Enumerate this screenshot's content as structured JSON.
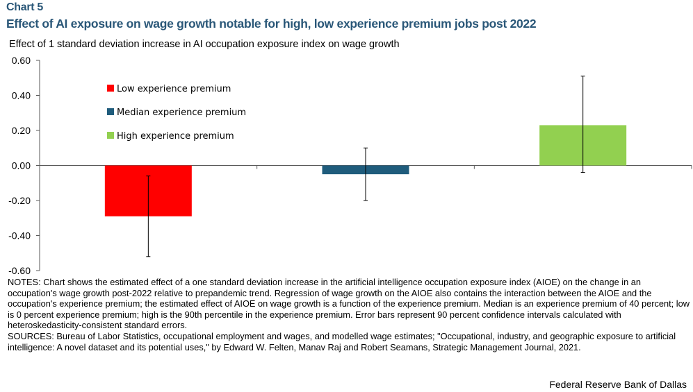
{
  "chart_number": "Chart 5",
  "title": "Effect of AI exposure on wage growth notable for high, low experience premium jobs post 2022",
  "subtitle": "Effect of 1 standard deviation increase in AI occupation exposure index on wage growth",
  "chart_data": {
    "type": "bar",
    "title": "Effect of AI exposure on wage growth notable for high, low experience premium jobs post 2022",
    "ylabel": "Effect of 1 standard deviation increase in AI occupation exposure index on wage growth",
    "xlabel": "",
    "ylim": [
      -0.6,
      0.6
    ],
    "yticks": [
      0.6,
      0.4,
      0.2,
      0.0,
      -0.2,
      -0.4,
      -0.6
    ],
    "ytick_labels": [
      "0.60",
      "0.40",
      "0.20",
      "0.00",
      "-0.20",
      "-0.40",
      "-0.60"
    ],
    "legend_position": "top-left",
    "series": [
      {
        "name": "Low experience premium",
        "value": -0.29,
        "ci_low": -0.52,
        "ci_high": -0.06,
        "color": "#ff0000"
      },
      {
        "name": "Median experience premium",
        "value": -0.05,
        "ci_low": -0.2,
        "ci_high": 0.1,
        "color": "#1f5c7c"
      },
      {
        "name": "High experience premium",
        "value": 0.23,
        "ci_low": -0.04,
        "ci_high": 0.51,
        "color": "#92d050"
      }
    ]
  },
  "notes": [
    "NOTES: Chart shows the estimated effect of a one standard deviation increase in the artificial intelligence occupation exposure index (AIOE) on the change in an occupation's wage growth post-2022 relative to prepandemic trend. Regression of wage growth on the AIOE also contains the interaction between the AIOE and the occupation's experience premium; the estimated effect of AIOE on wage growth is a function of the experience premium. Median is an experience premium of 40 percent; low is 0 percent experience premium; high is the 90th percentile in the experience premium. Error bars represent 90 percent confidence intervals calculated with heteroskedasticity-consistent standard errors.",
    "SOURCES: Bureau of Labor Statistics, occupational employment and wages, and modelled wage estimates; \"Occupational, industry, and geographic exposure to artificial intelligence: A novel dataset and its potential uses,\" by Edward W. Felten, Manav Raj and Robert Seamans, Strategic Management Journal, 2021."
  ],
  "credit": "Federal Reserve Bank of Dallas"
}
